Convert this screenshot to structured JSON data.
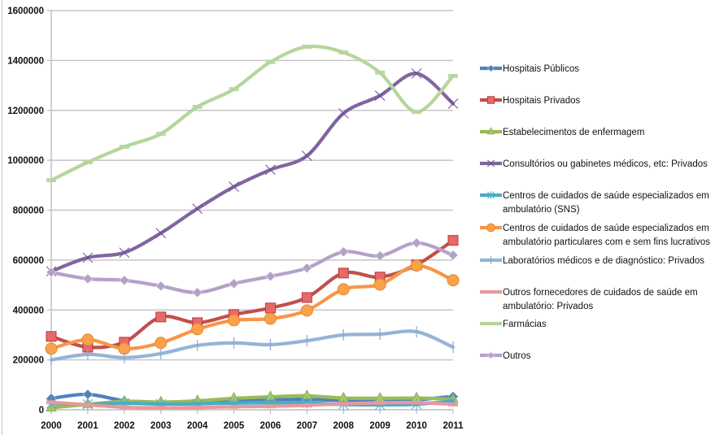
{
  "chart_data": {
    "type": "line",
    "title": "",
    "xlabel": "",
    "ylabel": "",
    "ylim": [
      0,
      1600000
    ],
    "yticks": [
      "0",
      "200000",
      "400000",
      "600000",
      "800000",
      "1000000",
      "1200000",
      "1400000",
      "1600000"
    ],
    "ytick_values": [
      0,
      200000,
      400000,
      600000,
      800000,
      1000000,
      1200000,
      1400000,
      1600000
    ],
    "grid": true,
    "legend_position": "right",
    "categories": [
      "2000",
      "2001",
      "2002",
      "2003",
      "2004",
      "2005",
      "2006",
      "2007",
      "2008",
      "2009",
      "2010",
      "2011"
    ],
    "series": [
      {
        "name": "Hospitais Públicos",
        "legend_lines": [
          "Hospitais Públicos"
        ],
        "color": "#4f81bd",
        "marker": "diamond",
        "values": [
          46000,
          62000,
          36000,
          28000,
          30000,
          36000,
          40000,
          42000,
          37000,
          38000,
          40000,
          54000
        ]
      },
      {
        "name": "Hospitais Privados",
        "legend_lines": [
          "Hospitais Privados"
        ],
        "color": "#c0504d",
        "marker": "square",
        "values": [
          294000,
          251000,
          271000,
          372000,
          349000,
          382000,
          408000,
          450000,
          548000,
          532000,
          581000,
          679000
        ]
      },
      {
        "name": "Estabelecimentos de enfermagem",
        "legend_lines": [
          "Estabelecimentos de enfermagem"
        ],
        "color": "#9bbb59",
        "marker": "triangle",
        "values": [
          8000,
          22000,
          34000,
          31000,
          36000,
          46000,
          52000,
          56000,
          47000,
          46000,
          47000,
          43000
        ]
      },
      {
        "name": "Consultórios ou gabinetes médicos, etc: Privados",
        "legend_lines": [
          "Consultórios ou gabinetes médicos, etc: Privados"
        ],
        "color": "#8064a2",
        "marker": "x",
        "values": [
          555000,
          610000,
          630000,
          708000,
          806000,
          894000,
          962000,
          1018000,
          1188000,
          1259000,
          1348000,
          1227000
        ]
      },
      {
        "name": "Centros de cuidados de saúde especializados em ambulatório (SNS)",
        "legend_lines": [
          "Centros de cuidados de saúde especializados em",
          "ambulatório (SNS)"
        ],
        "color": "#4bacc6",
        "marker": "star",
        "values": [
          25000,
          22000,
          26000,
          23000,
          24000,
          27000,
          28000,
          28000,
          21000,
          20000,
          22000,
          35000
        ]
      },
      {
        "name": "Centros de cuidados de saúde especializados em ambulatório particulares com e sem fins lucrativos",
        "legend_lines": [
          "Centros de cuidados de saúde especializados em",
          "ambulatório particulares com e sem fins lucrativos"
        ],
        "color": "#f79646",
        "marker": "circle",
        "values": [
          245000,
          281000,
          245000,
          268000,
          323000,
          359000,
          365000,
          398000,
          483000,
          502000,
          578000,
          519000
        ]
      },
      {
        "name": "Laboratórios médicos e de diagnóstico: Privados",
        "legend_lines": [
          "Laboratórios médicos e de diagnóstico: Privados"
        ],
        "color": "#95b3d7",
        "marker": "plus",
        "values": [
          200000,
          222000,
          209000,
          225000,
          258000,
          268000,
          261000,
          277000,
          300000,
          303000,
          313000,
          251000
        ]
      },
      {
        "name": "Outros fornecedores de cuidados de saúde em ambulatório: Privados",
        "legend_lines": [
          "Outros fornecedores de cuidados de saúde em",
          "ambulatório: Privados"
        ],
        "color": "#e6999a",
        "marker": "dash",
        "values": [
          30000,
          20000,
          10000,
          8000,
          9000,
          12000,
          14000,
          18000,
          24000,
          28000,
          29000,
          22000
        ]
      },
      {
        "name": "Farmácias",
        "legend_lines": [
          "Farmácias"
        ],
        "color": "#b5d69a",
        "marker": "dash",
        "values": [
          920000,
          992000,
          1054000,
          1106000,
          1214000,
          1285000,
          1394000,
          1455000,
          1432000,
          1351000,
          1194000,
          1338000
        ]
      },
      {
        "name": "Outros",
        "legend_lines": [
          "Outros"
        ],
        "color": "#b3a2c7",
        "marker": "diamond",
        "values": [
          551000,
          525000,
          519000,
          496000,
          470000,
          506000,
          535000,
          568000,
          633000,
          617000,
          669000,
          620000
        ]
      }
    ]
  }
}
